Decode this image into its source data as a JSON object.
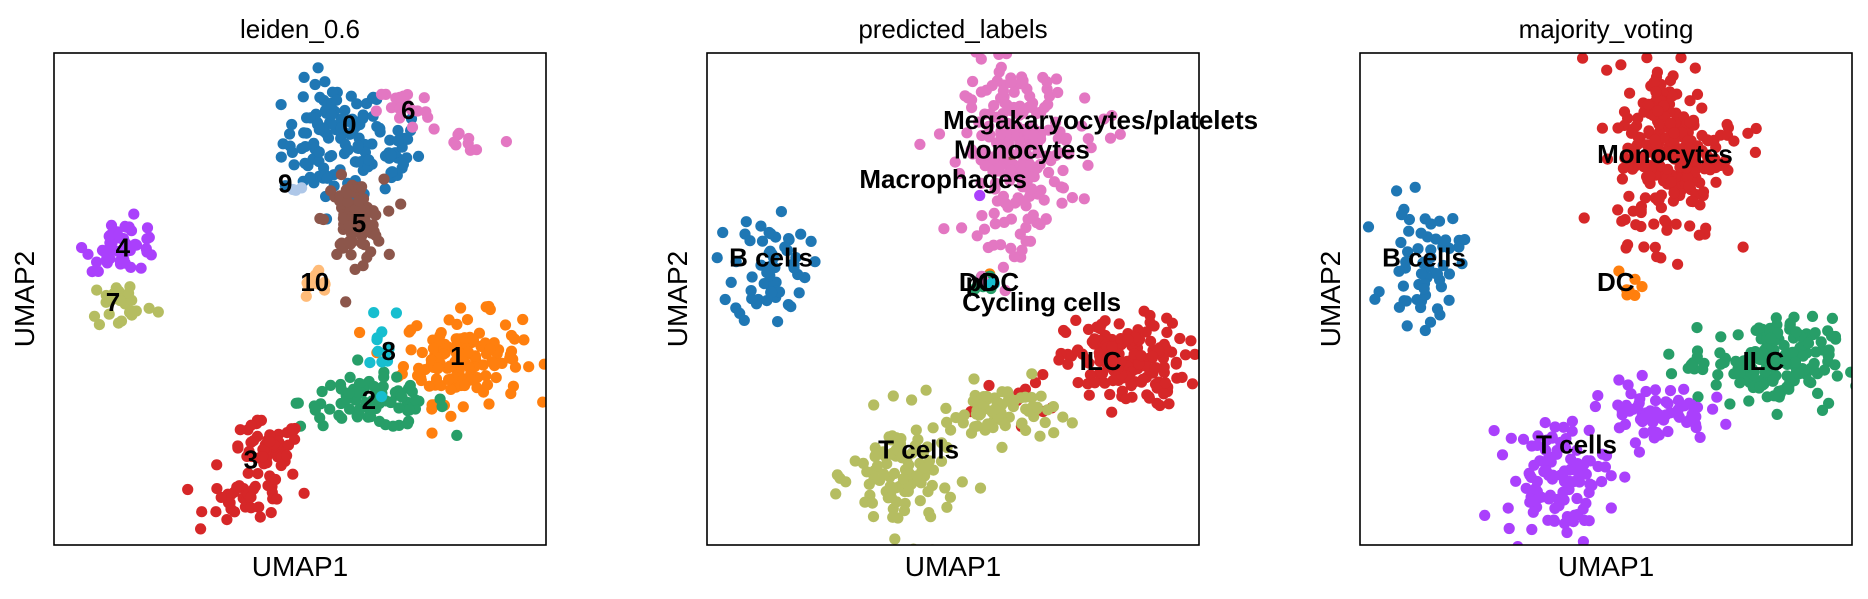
{
  "chart_data": [
    {
      "type": "scatter",
      "title": "leiden_0.6",
      "xlabel": "UMAP1",
      "ylabel": "UMAP2",
      "legend": "on data",
      "grid": false,
      "categories": [
        {
          "name": "0",
          "color": "#1f77b4",
          "label": "0",
          "label_pos": [
            0.6,
            0.85
          ],
          "clusters": [
            [
              0.57,
              0.82,
              0.07,
              0.08,
              110
            ],
            [
              0.67,
              0.8,
              0.05,
              0.06,
              30
            ]
          ]
        },
        {
          "name": "1",
          "color": "#ff7f0e",
          "label": "1",
          "label_pos": [
            0.82,
            0.38
          ],
          "clusters": [
            [
              0.83,
              0.38,
              0.08,
              0.06,
              150
            ]
          ]
        },
        {
          "name": "2",
          "color": "#279e68",
          "label": "2",
          "label_pos": [
            0.64,
            0.29
          ],
          "clusters": [
            [
              0.65,
              0.29,
              0.1,
              0.035,
              90
            ]
          ]
        },
        {
          "name": "3",
          "color": "#d62728",
          "label": "3",
          "label_pos": [
            0.4,
            0.17
          ],
          "clusters": [
            [
              0.43,
              0.19,
              0.05,
              0.04,
              50
            ],
            [
              0.4,
              0.09,
              0.06,
              0.03,
              40
            ]
          ]
        },
        {
          "name": "4",
          "color": "#aa40fc",
          "label": "4",
          "label_pos": [
            0.14,
            0.6
          ],
          "clusters": [
            [
              0.14,
              0.61,
              0.05,
              0.035,
              45
            ]
          ]
        },
        {
          "name": "5",
          "color": "#8c564b",
          "label": "5",
          "label_pos": [
            0.62,
            0.65
          ],
          "clusters": [
            [
              0.61,
              0.66,
              0.04,
              0.055,
              80
            ]
          ]
        },
        {
          "name": "6",
          "color": "#e377c2",
          "label": "6",
          "label_pos": [
            0.72,
            0.88
          ],
          "clusters": [
            [
              0.71,
              0.89,
              0.035,
              0.03,
              20
            ],
            [
              0.83,
              0.82,
              0.07,
              0.04,
              10
            ]
          ]
        },
        {
          "name": "7",
          "color": "#b5bd61",
          "label": "7",
          "label_pos": [
            0.12,
            0.49
          ],
          "clusters": [
            [
              0.14,
              0.49,
              0.045,
              0.035,
              25
            ]
          ]
        },
        {
          "name": "8",
          "color": "#17becf",
          "label": "8",
          "label_pos": [
            0.68,
            0.39
          ],
          "clusters": [
            [
              0.67,
              0.43,
              0.03,
              0.06,
              12
            ]
          ]
        },
        {
          "name": "9",
          "color": "#aec7e8",
          "label": "9",
          "label_pos": [
            0.47,
            0.73
          ],
          "clusters": [
            [
              0.49,
              0.72,
              0.012,
              0.01,
              3
            ]
          ]
        },
        {
          "name": "10",
          "color": "#ffbb78",
          "label": "10",
          "label_pos": [
            0.53,
            0.53
          ],
          "clusters": [
            [
              0.54,
              0.53,
              0.03,
              0.02,
              12
            ]
          ]
        }
      ]
    },
    {
      "type": "scatter",
      "title": "predicted_labels",
      "xlabel": "UMAP1",
      "ylabel": "UMAP2",
      "legend": "on data",
      "grid": false,
      "categories": [
        {
          "name": "B cells",
          "color": "#1f77b4",
          "label": "B cells",
          "label_pos": [
            0.13,
            0.58
          ],
          "clusters": [
            [
              0.13,
              0.57,
              0.05,
              0.08,
              60
            ]
          ]
        },
        {
          "name": "DC",
          "color": "#ff7f0e",
          "label": "DC",
          "label_pos": [
            0.55,
            0.53
          ],
          "clusters": [
            [
              0.57,
              0.55,
              0.01,
              0.01,
              2
            ]
          ]
        },
        {
          "name": "Cycling cells",
          "color": "#279e68",
          "label": "Cycling cells",
          "label_pos": [
            0.68,
            0.49
          ],
          "clusters": [
            [
              0.56,
              0.53,
              0.02,
              0.02,
              10
            ]
          ]
        },
        {
          "name": "ILC",
          "color": "#d62728",
          "label": "ILC",
          "label_pos": [
            0.8,
            0.37
          ],
          "clusters": [
            [
              0.85,
              0.37,
              0.08,
              0.06,
              170
            ],
            [
              0.62,
              0.3,
              0.05,
              0.03,
              10
            ]
          ]
        },
        {
          "name": "Macrophages",
          "color": "#aa40fc",
          "label": "Macrophages",
          "label_pos": [
            0.48,
            0.74
          ],
          "clusters": [
            [
              0.56,
              0.71,
              0.01,
              0.01,
              1
            ]
          ]
        },
        {
          "name": "Megakaryocytes/platelets",
          "color": "#8c564b",
          "label": "Megakaryocytes/platelets",
          "label_pos": [
            0.8,
            0.86
          ],
          "clusters": [
            [
              0.62,
              0.8,
              0.01,
              0.01,
              1
            ]
          ]
        },
        {
          "name": "Monocytes",
          "color": "#e377c2",
          "label": "Monocytes",
          "label_pos": [
            0.64,
            0.8
          ],
          "clusters": [
            [
              0.63,
              0.8,
              0.07,
              0.12,
              240
            ],
            [
              0.78,
              0.84,
              0.05,
              0.03,
              8
            ]
          ]
        },
        {
          "name": "T cells",
          "color": "#b5bd61",
          "label": "T cells",
          "label_pos": [
            0.43,
            0.19
          ],
          "clusters": [
            [
              0.6,
              0.27,
              0.07,
              0.04,
              70
            ],
            [
              0.4,
              0.14,
              0.07,
              0.08,
              110
            ]
          ]
        },
        {
          "name": "pDC",
          "color": "#17becf",
          "label": "pDC",
          "label_pos": [
            0.58,
            0.53
          ],
          "clusters": [
            [
              0.58,
              0.53,
              0.01,
              0.01,
              2
            ]
          ]
        }
      ]
    },
    {
      "type": "scatter",
      "title": "majority_voting",
      "xlabel": "UMAP1",
      "ylabel": "UMAP2",
      "legend": "on data",
      "grid": false,
      "categories": [
        {
          "name": "B cells",
          "color": "#1f77b4",
          "label": "B cells",
          "label_pos": [
            0.13,
            0.58
          ],
          "clusters": [
            [
              0.13,
              0.57,
              0.05,
              0.08,
              60
            ]
          ]
        },
        {
          "name": "DC",
          "color": "#ff7f0e",
          "label": "DC",
          "label_pos": [
            0.52,
            0.53
          ],
          "clusters": [
            [
              0.55,
              0.53,
              0.02,
              0.02,
              7
            ]
          ]
        },
        {
          "name": "ILC",
          "color": "#279e68",
          "label": "ILC",
          "label_pos": [
            0.82,
            0.37
          ],
          "clusters": [
            [
              0.84,
              0.37,
              0.08,
              0.06,
              170
            ],
            [
              0.67,
              0.38,
              0.03,
              0.03,
              8
            ]
          ]
        },
        {
          "name": "Monocytes",
          "color": "#d62728",
          "label": "Monocytes",
          "label_pos": [
            0.62,
            0.79
          ],
          "clusters": [
            [
              0.63,
              0.8,
              0.07,
              0.12,
              240
            ],
            [
              0.78,
              0.84,
              0.05,
              0.03,
              8
            ]
          ]
        },
        {
          "name": "T cells",
          "color": "#aa40fc",
          "label": "T cells",
          "label_pos": [
            0.44,
            0.2
          ],
          "clusters": [
            [
              0.6,
              0.27,
              0.07,
              0.04,
              70
            ],
            [
              0.4,
              0.14,
              0.07,
              0.08,
              110
            ]
          ]
        }
      ]
    }
  ]
}
